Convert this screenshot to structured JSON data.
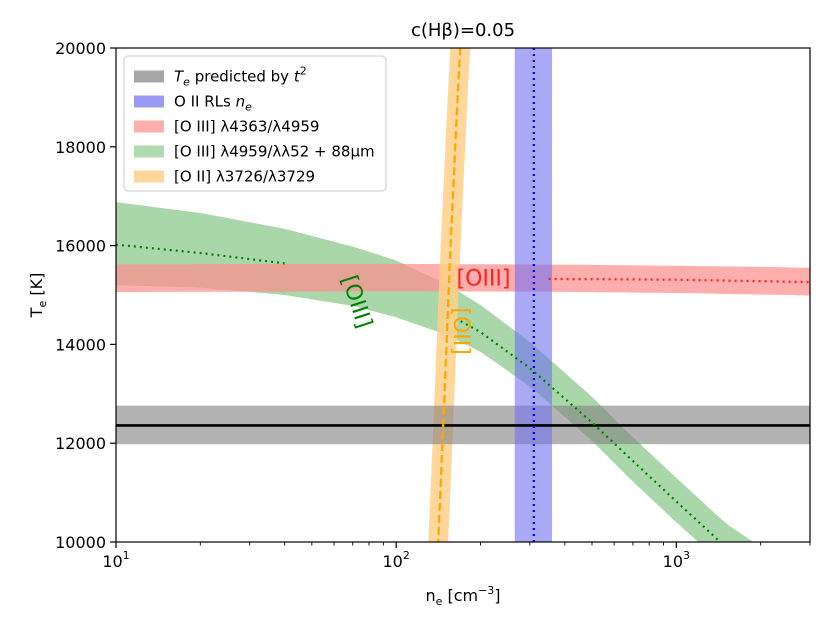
{
  "chart_data": {
    "type": "line",
    "title": "c(Hβ)=0.05",
    "xlabel": "n_e [cm^-3]",
    "ylabel": "T_e [K]",
    "xscale": "log",
    "xlim": [
      10,
      3000
    ],
    "ylim": [
      10000,
      20000
    ],
    "x_ticks": [
      {
        "value": 10,
        "base": "10",
        "exp": "1"
      },
      {
        "value": 100,
        "base": "10",
        "exp": "2"
      },
      {
        "value": 1000,
        "base": "10",
        "exp": "3"
      }
    ],
    "y_ticks": [
      "10000",
      "12000",
      "14000",
      "16000",
      "18000",
      "20000"
    ],
    "colors": {
      "tsq": "#808080",
      "orl": "#6f6ff0",
      "oiii_aur": "#ff8c8c",
      "oiii_ir": "#8ec98e",
      "oii": "#ffd08a",
      "oii_line": "#ffa500",
      "orl_line": "#0000ee",
      "oiii_aur_line": "#ff2020",
      "oiii_ir_line": "#008000"
    },
    "series": [
      {
        "key": "tsq",
        "name": "T_e predicted by t^2",
        "kind": "hband",
        "center": 12360,
        "low": 11980,
        "high": 12760
      },
      {
        "key": "orl",
        "name": "O II RLs n_e",
        "kind": "vband",
        "center": 310,
        "low": 265,
        "high": 360
      },
      {
        "key": "oiii_aur",
        "name": "[O III] λ4363/λ4959",
        "kind": "band",
        "x": [
          10,
          40,
          100,
          250,
          500,
          1000,
          2000,
          3000
        ],
        "y": [
          15330,
          15340,
          15340,
          15330,
          15320,
          15310,
          15280,
          15260
        ],
        "lo": [
          15060,
          15070,
          15075,
          15070,
          15060,
          15040,
          15010,
          14990
        ],
        "hi": [
          15620,
          15630,
          15630,
          15620,
          15610,
          15590,
          15570,
          15550
        ]
      },
      {
        "key": "oiii_ir",
        "name": "[O III] λ4959/λλ52 + 88μm",
        "kind": "band",
        "x": [
          10,
          20,
          40,
          70,
          100,
          150,
          200,
          300,
          500,
          700,
          1000,
          1500,
          2000
        ],
        "y": [
          16020,
          15850,
          15640,
          15350,
          15080,
          14640,
          14250,
          13520,
          12420,
          11640,
          10820,
          9900,
          9400
        ],
        "lo": [
          15200,
          15150,
          15000,
          14780,
          14550,
          14200,
          13850,
          13150,
          12050,
          11220,
          10400,
          9500,
          9000
        ],
        "hi": [
          16880,
          16660,
          16340,
          15980,
          15700,
          15230,
          14800,
          14050,
          12940,
          12120,
          11300,
          10380,
          9900
        ]
      },
      {
        "key": "oii",
        "name": "[O II] λ3726/λ3729",
        "kind": "curve",
        "x": [
          141,
          145,
          150,
          155,
          160,
          165,
          170
        ],
        "y": [
          9900,
          11500,
          13500,
          15500,
          17200,
          18800,
          20200
        ],
        "half_width": 11
      }
    ],
    "dotted_lines": [
      {
        "key": "oiii_ir_line",
        "x": [
          10,
          40
        ],
        "y": [
          16020,
          15640
        ]
      },
      {
        "key": "oiii_ir_line",
        "x": [
          170,
          1500
        ],
        "y": [
          14530,
          10200
        ]
      },
      {
        "key": "oiii_aur_line",
        "x": [
          350,
          3000
        ],
        "y": [
          15330,
          15260
        ]
      }
    ],
    "dashed_lines": [
      {
        "key": "oii_line",
        "x": [
          141,
          145,
          150,
          155,
          160,
          165,
          170
        ],
        "y": [
          9900,
          11500,
          13500,
          15500,
          17200,
          18800,
          20200
        ]
      }
    ],
    "legend": {
      "position": "upper-left",
      "entries": [
        {
          "key": "tsq",
          "label": "T_e predicted by t^2"
        },
        {
          "key": "orl",
          "label": "O II RLs n_e"
        },
        {
          "key": "oiii_aur",
          "label": "[O III] λ4363/λ4959"
        },
        {
          "key": "oiii_ir",
          "label": "[O III] λ4959/λλ52 + 88μm"
        },
        {
          "key": "oii",
          "label": "[O II] λ3726/λ3729"
        }
      ]
    },
    "annotations": [
      {
        "text": "[OIII]",
        "color": "#ff1f1f",
        "x": 205,
        "y": 15320,
        "rotation": 0
      },
      {
        "text": "[OIII]",
        "color": "#008000",
        "x": 72,
        "y": 14860,
        "rotation": 72
      },
      {
        "text": "[OII]",
        "color": "#ffa500",
        "x": 170,
        "y": 14270,
        "rotation": 90
      }
    ]
  }
}
